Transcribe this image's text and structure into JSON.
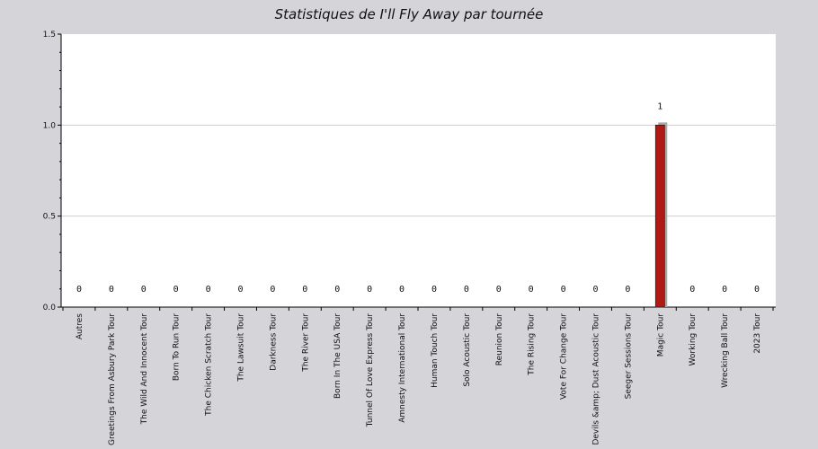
{
  "chart_data": {
    "type": "bar",
    "title": "Statistiques de I'll Fly Away par tournée",
    "xlabel": "",
    "ylabel": "",
    "ylim": [
      0,
      1.5
    ],
    "yticks": [
      "0.0",
      "0.5",
      "1.0",
      "1.5"
    ],
    "grid": true,
    "categories": [
      "Autres",
      "Greetings From Asbury Park Tour",
      "The Wild And Innocent Tour",
      "Born To Run Tour",
      "The Chicken Scratch Tour",
      "The Lawsuit Tour",
      "Darkness Tour",
      "The River Tour",
      "Born In The USA Tour",
      "Tunnel Of Love Express Tour",
      "Amnesty International Tour",
      "Human Touch Tour",
      "Solo Acoustic Tour",
      "Reunion Tour",
      "The Rising Tour",
      "Vote For Change Tour",
      "Devils &amp; Dust Acoustic Tour",
      "Seeger Sessions Tour",
      "Magic Tour",
      "Working Tour",
      "Wrecking Ball Tour",
      "2023 Tour"
    ],
    "values": [
      0,
      0,
      0,
      0,
      0,
      0,
      0,
      0,
      0,
      0,
      0,
      0,
      0,
      0,
      0,
      0,
      0,
      0,
      1,
      0,
      0,
      0
    ],
    "data_labels": [
      "0",
      "0",
      "0",
      "0",
      "0",
      "0",
      "0",
      "0",
      "0",
      "0",
      "0",
      "0",
      "0",
      "0",
      "0",
      "0",
      "0",
      "0",
      "1",
      "0",
      "0",
      "0"
    ],
    "colors": {
      "bar": "#b01a14",
      "bar_shadow": "#a9a9a9",
      "plot_bg": "#ffffff",
      "page_bg": "#d5d4d9",
      "grid": "#cfcfcf"
    }
  }
}
